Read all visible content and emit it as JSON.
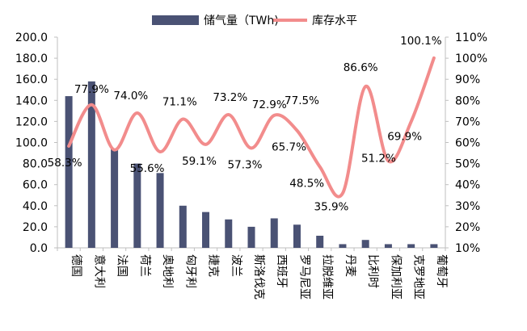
{
  "chart_data": {
    "type": "bar",
    "categories": [
      "德国",
      "意大利",
      "法国",
      "荷兰",
      "奥地利",
      "匈牙利",
      "捷克",
      "波兰",
      "斯洛伐克",
      "西班牙",
      "罗马尼亚",
      "拉脱维亚",
      "丹麦",
      "比利时",
      "保加利亚",
      "克罗地亚",
      "葡萄牙"
    ],
    "series": [
      {
        "name": "储气量（TWh)",
        "type": "bar",
        "axis": "left",
        "color": "#4a5274",
        "values": [
          144,
          158,
          94,
          80,
          71,
          40,
          34,
          27,
          20,
          28,
          22,
          11.5,
          3.5,
          7.5,
          3.5,
          3.5,
          3.5
        ]
      },
      {
        "name": "库存水平",
        "type": "line",
        "axis": "right",
        "color": "#f28c8c",
        "values": [
          58.3,
          77.9,
          56.5,
          74.0,
          55.6,
          71.1,
          59.1,
          73.2,
          57.3,
          72.9,
          65.7,
          48.5,
          35.9,
          86.6,
          51.2,
          69.9,
          100.1
        ],
        "labels": [
          "58.3%",
          "77.9%",
          "",
          "74.0%",
          "55.6%",
          "71.1%",
          "59.1%",
          "73.2%",
          "57.3%",
          "72.9%",
          "65.7%",
          "48.5%",
          "35.9%",
          "86.6%",
          "51.2%",
          "69.9%",
          "100.1%"
        ]
      }
    ],
    "extra_labels": [
      "77.5%"
    ],
    "y_left": {
      "min": 0,
      "max": 200,
      "ticks": [
        "0.0",
        "20.0",
        "40.0",
        "60.0",
        "80.0",
        "100.0",
        "120.0",
        "140.0",
        "160.0",
        "180.0",
        "200.0"
      ]
    },
    "y_right": {
      "min": 10,
      "max": 110,
      "ticks": [
        "10%",
        "20%",
        "30%",
        "40%",
        "50%",
        "60%",
        "70%",
        "80%",
        "90%",
        "100%",
        "110%"
      ]
    },
    "grid": false,
    "legend_position": "top"
  }
}
